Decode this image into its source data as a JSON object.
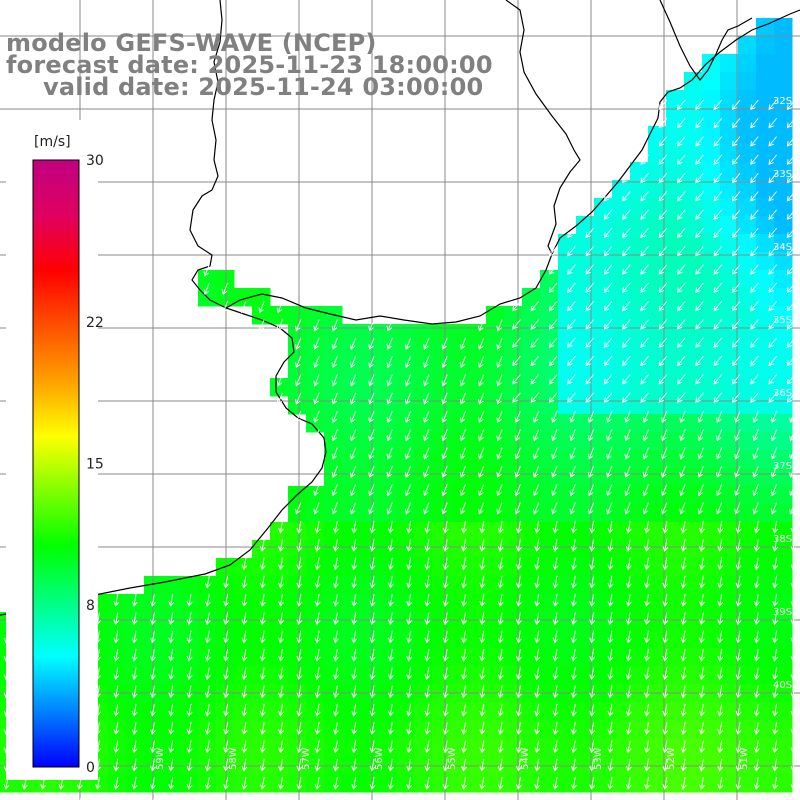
{
  "title": {
    "line1": "modelo GEFS-WAVE (NCEP)",
    "line2": "forecast date: 2025-11-23 18:00:00",
    "line3": "valid date: 2025-11-24 03:00:00"
  },
  "colorbar": {
    "unit": "[m/s]",
    "ticks": [
      "30",
      "22",
      "15",
      "8",
      "0"
    ],
    "tick_values": [
      30,
      22,
      15,
      8,
      0
    ],
    "range": [
      0,
      30
    ],
    "colors": [
      "#0000ff",
      "#0080ff",
      "#00ffff",
      "#00ff80",
      "#00ff00",
      "#80ff00",
      "#ffff00",
      "#ffa000",
      "#ff5000",
      "#ff0000",
      "#e00060",
      "#c00080"
    ]
  },
  "map": {
    "variable": "wind speed (m/s) with direction arrows",
    "arrow_color": "#ffffff",
    "coast_color": "#000000",
    "grid_color": "#888888",
    "land_color": "#ffffff",
    "lat_labels": [
      "32S",
      "33S",
      "34S",
      "35S",
      "36S",
      "37S",
      "38S",
      "39S",
      "40S"
    ],
    "lon_labels": [
      "60W",
      "59W",
      "58W",
      "57W",
      "56W",
      "55W",
      "54W",
      "53W",
      "52W",
      "51W",
      "50W"
    ],
    "speed_field": {
      "description": "approximate wind speed (m/s) by region",
      "north_east_ocean": 6,
      "central_estuary": 10,
      "south": 11,
      "far_south_east": 12
    }
  }
}
